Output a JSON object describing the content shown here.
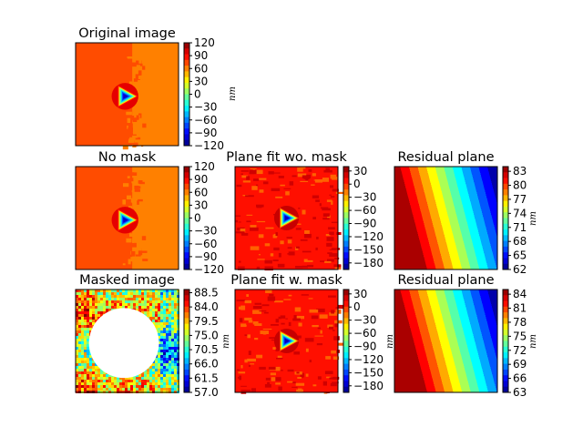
{
  "unit_label": "nm",
  "colormap": [
    "#00007f",
    "#0000ff",
    "#007fff",
    "#00ffff",
    "#7fff7f",
    "#ffff00",
    "#ff7f00",
    "#ff0000",
    "#7f0000"
  ],
  "chart_data": [
    {
      "id": "original",
      "type": "heatmap",
      "title": "Original image",
      "content": "topography",
      "colorbar": {
        "range": [
          -120,
          120
        ],
        "ticks": [
          "120",
          "90",
          "60",
          "30",
          "0",
          "−30",
          "−60",
          "−90",
          "−120"
        ]
      },
      "unit_label": "nm",
      "background_values": {
        "left_region": 60,
        "right_region": 70
      },
      "feature": {
        "shape": "triangle",
        "min": -120,
        "rim": 120
      }
    },
    {
      "id": "no-mask",
      "type": "heatmap",
      "title": "No mask",
      "content": "topography",
      "colorbar": {
        "range": [
          -120,
          120
        ],
        "ticks": [
          "120",
          "90",
          "60",
          "30",
          "0",
          "−30",
          "−60",
          "−90",
          "−120"
        ]
      },
      "unit_label": "",
      "background_values": {
        "left_region": 60,
        "right_region": 70
      },
      "feature": {
        "shape": "triangle",
        "min": -120,
        "rim": 120
      }
    },
    {
      "id": "plane-fit-wo-mask",
      "type": "heatmap",
      "title": "Plane fit wo. mask",
      "content": "topography",
      "colorbar": {
        "range": [
          -195,
          40
        ],
        "ticks": [
          "30",
          "0",
          "−30",
          "−60",
          "−90",
          "−120",
          "−150",
          "−180"
        ]
      },
      "unit_label": "",
      "feature": {
        "shape": "triangle"
      }
    },
    {
      "id": "residual-plane-1",
      "type": "heatmap",
      "title": "Residual plane",
      "content": "gradient",
      "colorbar": {
        "range": [
          62,
          84
        ],
        "ticks": [
          "83",
          "80",
          "77",
          "74",
          "71",
          "68",
          "65",
          "62"
        ]
      },
      "unit_label": "nm"
    },
    {
      "id": "masked-image",
      "type": "heatmap",
      "title": "Masked image",
      "content": "noise",
      "colorbar": {
        "range": [
          57,
          89.5
        ],
        "ticks": [
          "88.5",
          "84.0",
          "79.5",
          "75.0",
          "70.5",
          "66.0",
          "61.5",
          "57.0"
        ]
      },
      "unit_label": "nm",
      "mask": {
        "shape": "circle"
      }
    },
    {
      "id": "plane-fit-w-mask",
      "type": "heatmap",
      "title": "Plane fit w. mask",
      "content": "topography",
      "colorbar": {
        "range": [
          -195,
          40
        ],
        "ticks": [
          "30",
          "0",
          "−30",
          "−60",
          "−90",
          "−120",
          "−150",
          "−180"
        ]
      },
      "unit_label": "nm",
      "feature": {
        "shape": "triangle"
      }
    },
    {
      "id": "residual-plane-2",
      "type": "heatmap",
      "title": "Residual plane",
      "content": "gradient",
      "colorbar": {
        "range": [
          63,
          85
        ],
        "ticks": [
          "84",
          "81",
          "78",
          "75",
          "72",
          "69",
          "66",
          "63"
        ]
      },
      "unit_label": "nm"
    }
  ]
}
